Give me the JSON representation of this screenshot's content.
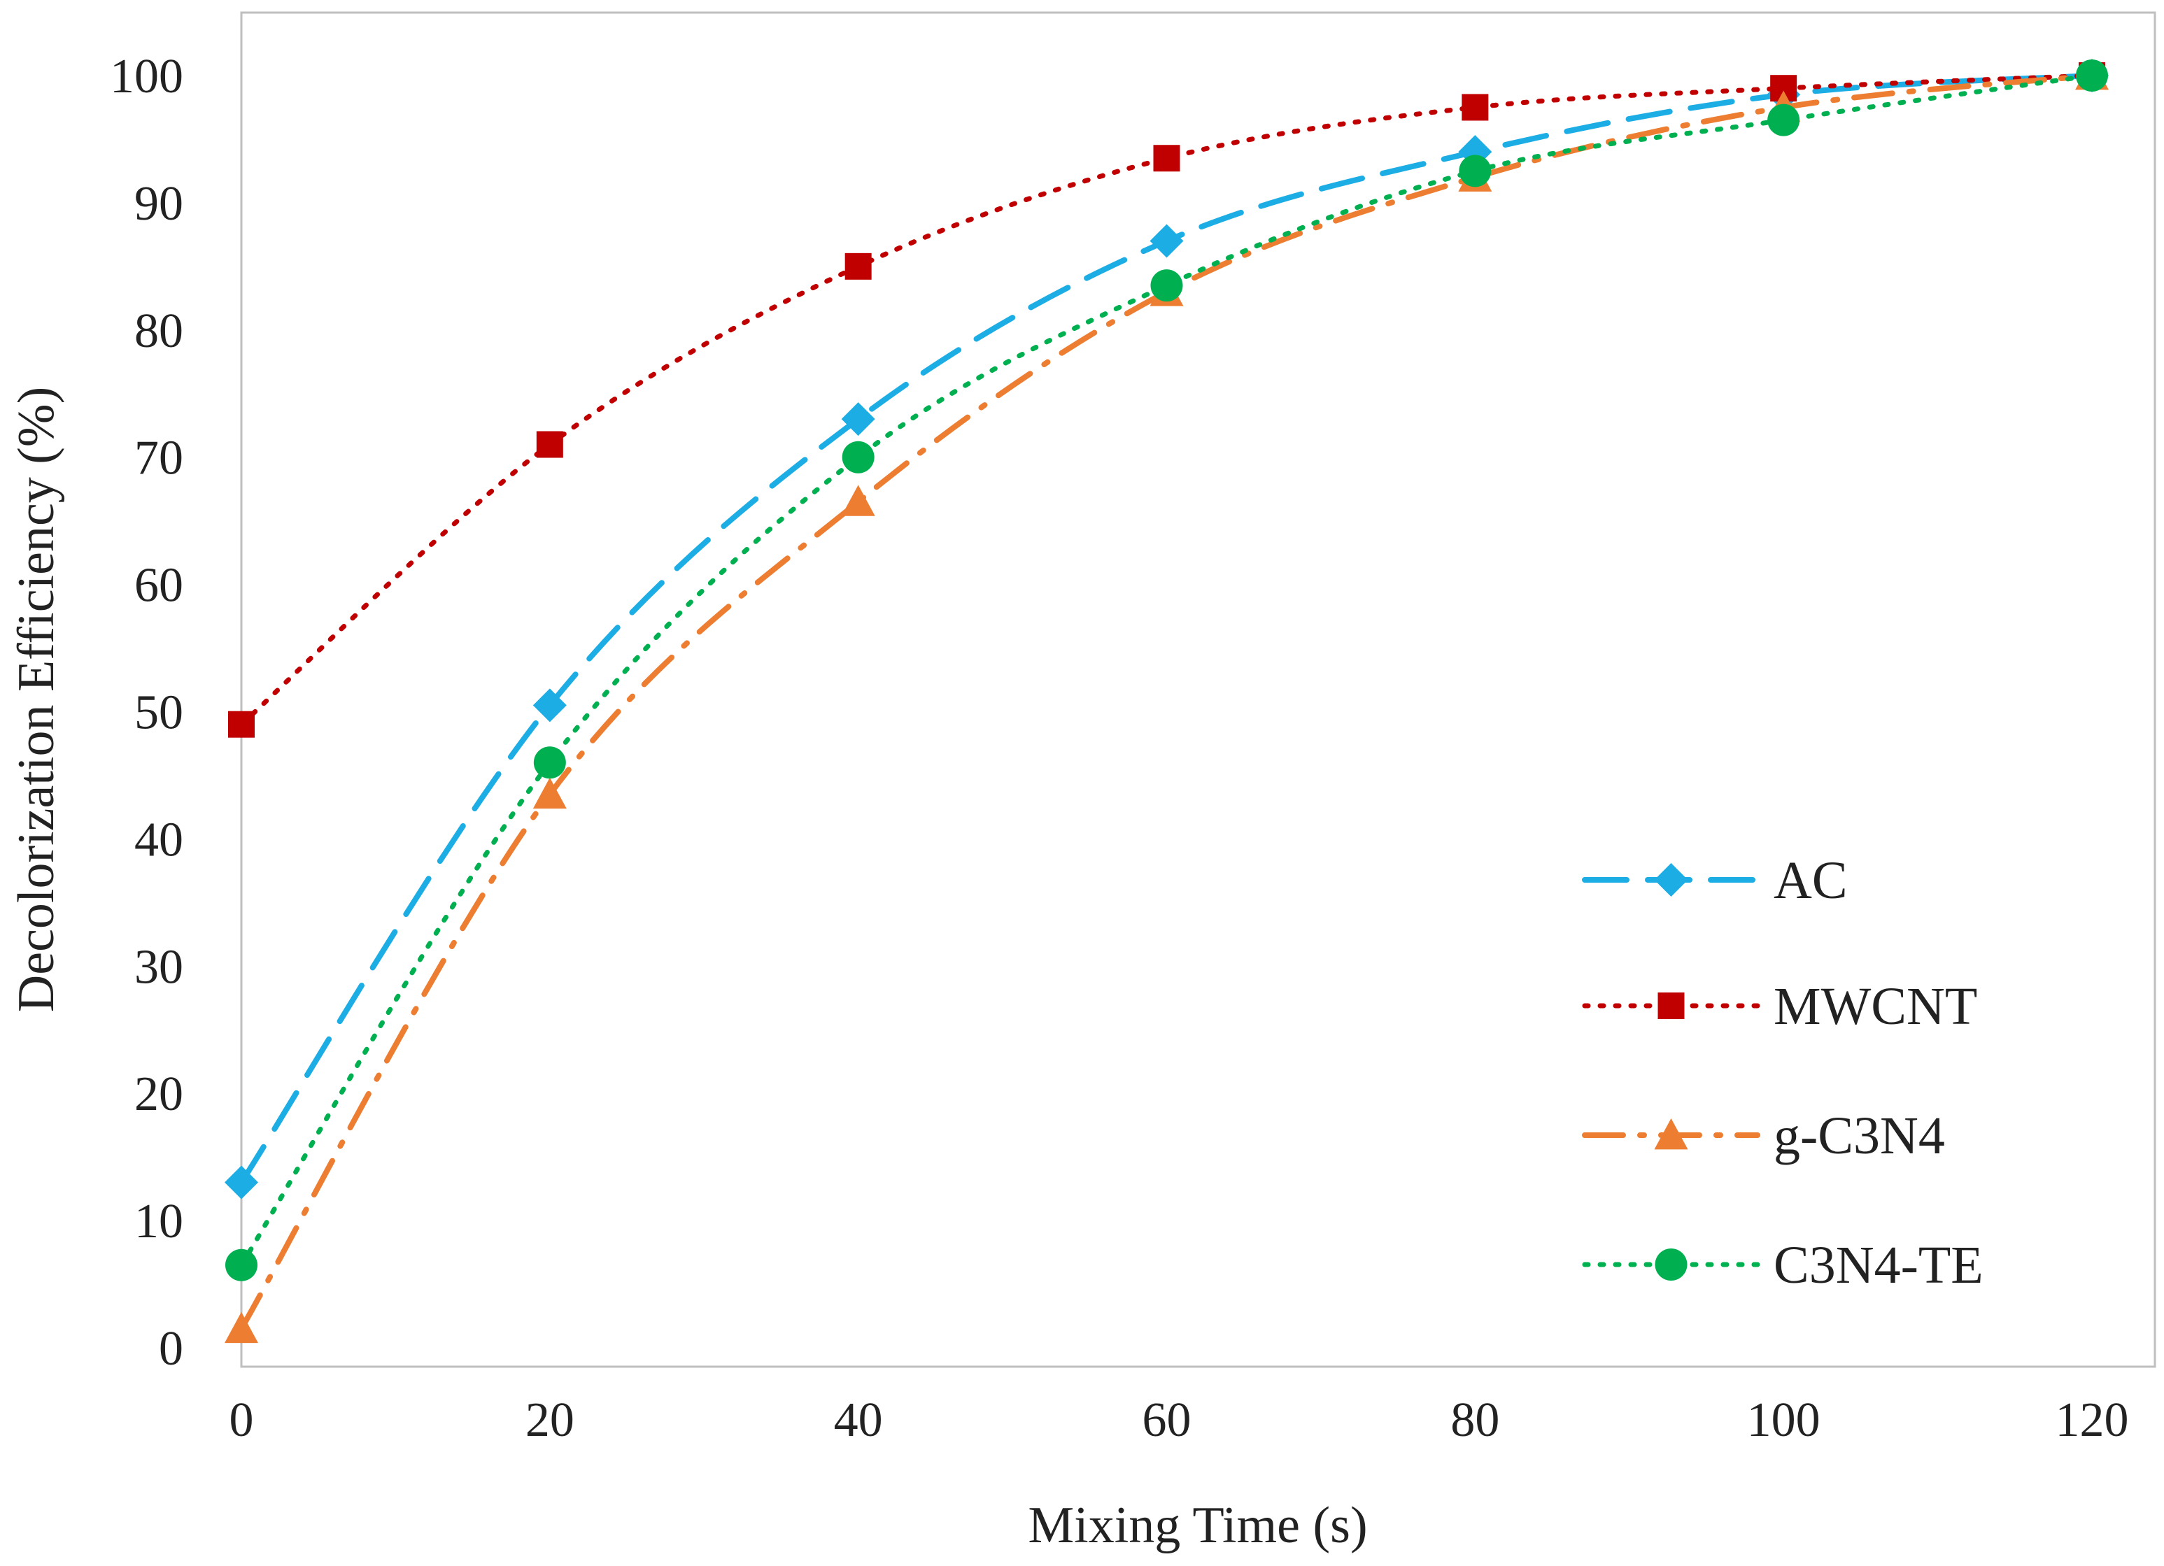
{
  "chart_data": {
    "type": "line",
    "title": "",
    "xlabel": "Mixing Time (s)",
    "ylabel": "Decolorization Efficiency (%)",
    "x": [
      0,
      20,
      40,
      60,
      80,
      100,
      120
    ],
    "xlim": [
      0,
      120
    ],
    "ylim": [
      0,
      100
    ],
    "xticks": [
      0,
      20,
      40,
      60,
      80,
      100,
      120
    ],
    "yticks": [
      0,
      10,
      20,
      30,
      40,
      50,
      60,
      70,
      80,
      90,
      100
    ],
    "grid": false,
    "legend_position": "bottom-right",
    "series": [
      {
        "name": "AC",
        "values": [
          13,
          50.5,
          73,
          87,
          94,
          98.5,
          100
        ],
        "color": "#1CADE4",
        "line_style": "long-dash",
        "marker": "diamond"
      },
      {
        "name": "MWCNT",
        "values": [
          49,
          71,
          85,
          93.5,
          97.5,
          99,
          100
        ],
        "color": "#C00000",
        "line_style": "dotted",
        "marker": "square"
      },
      {
        "name": "g-C3N4",
        "values": [
          1.5,
          43.5,
          66.5,
          83,
          92,
          97.5,
          100
        ],
        "color": "#ED7D31",
        "line_style": "dash-dot",
        "marker": "triangle"
      },
      {
        "name": "C3N4-TE",
        "values": [
          6.5,
          46,
          70,
          83.5,
          92.5,
          96.5,
          100
        ],
        "color": "#00B050",
        "line_style": "dotted",
        "marker": "circle"
      }
    ]
  }
}
